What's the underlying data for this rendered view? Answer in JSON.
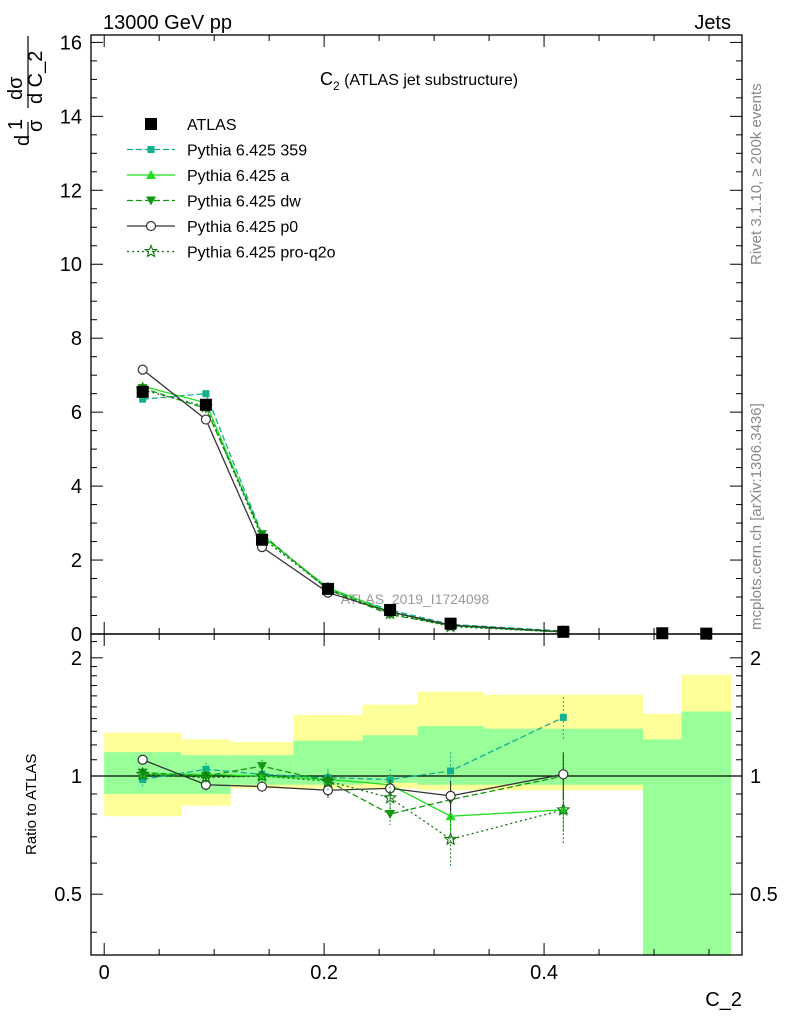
{
  "header": {
    "left": "13000 GeV pp",
    "right": "Jets"
  },
  "side": {
    "rivet": "Rivet 3.1.10, ≥ 200k events",
    "mcplots": "mcplots.cern.ch [arXiv:1306.3436]"
  },
  "chart_data": {
    "type": "line",
    "title": "C₂ (ATLAS jet substructure)",
    "title_main": "C",
    "title_sub": "2",
    "title_rest": " (ATLAS jet substructure)",
    "analysis_label": "ATLAS_2019_I1724098",
    "xlabel": "C_2",
    "ylabel_top": {
      "frac1_num": "1",
      "frac1_den": "σ",
      "frac2_num": "dσ",
      "frac2_den": "d C_2",
      "prefix": "d"
    },
    "ylabel_bottom": "Ratio to ATLAS",
    "xlim": [
      -0.012,
      0.58
    ],
    "ylim_top": [
      0,
      16.2
    ],
    "ylim_ratio": [
      0.35,
      2.3
    ],
    "xticks": [
      "0",
      "0.2",
      "0.4"
    ],
    "yticks_top": [
      "0",
      "2",
      "4",
      "6",
      "8",
      "10",
      "12",
      "14",
      "16"
    ],
    "yticks_ratio": [
      "0.5",
      "1",
      "2"
    ],
    "grid": false,
    "legend_position": "top-left",
    "bins": [
      [
        0,
        0.07
      ],
      [
        0.07,
        0.115
      ],
      [
        0.115,
        0.172
      ],
      [
        0.172,
        0.235
      ],
      [
        0.235,
        0.285
      ],
      [
        0.285,
        0.345
      ],
      [
        0.345,
        0.49
      ],
      [
        0.49,
        0.525
      ],
      [
        0.525,
        0.57
      ]
    ],
    "data_x": [
      0.035,
      0.0925,
      0.1435,
      0.2035,
      0.26,
      0.315,
      0.4175,
      0.5075,
      0.5475
    ],
    "data_y": [
      6.55,
      6.2,
      2.55,
      1.22,
      0.65,
      0.28,
      0.06,
      0.02,
      0.01
    ],
    "band_yellow": [
      [
        0.79,
        1.29
      ],
      [
        0.84,
        1.24
      ],
      [
        0.93,
        1.22
      ],
      [
        0.93,
        1.43
      ],
      [
        0.93,
        1.52
      ],
      [
        0.92,
        1.64
      ],
      [
        0.92,
        1.61
      ],
      [
        0.35,
        1.44
      ],
      [
        0.35,
        1.81
      ]
    ],
    "band_green": [
      [
        0.9,
        1.15
      ],
      [
        0.9,
        1.13
      ],
      [
        0.95,
        1.13
      ],
      [
        0.95,
        1.23
      ],
      [
        0.96,
        1.27
      ],
      [
        0.95,
        1.34
      ],
      [
        0.95,
        1.32
      ],
      [
        0.35,
        1.24
      ],
      [
        0.35,
        1.46
      ]
    ],
    "series": [
      {
        "name": "ATLAS",
        "color": "#000000",
        "marker": "square-filled",
        "dash": "none",
        "x": [
          0.035,
          0.0925,
          0.1435,
          0.2035,
          0.26,
          0.315,
          0.4175,
          0.5075,
          0.5475
        ],
        "y": [
          6.55,
          6.2,
          2.55,
          1.22,
          0.65,
          0.28,
          0.06,
          0.02,
          0.01
        ],
        "ratio": []
      },
      {
        "name": "Pythia 6.425 359",
        "color": "#10b090",
        "marker": "square-small",
        "dash": "6,3",
        "x": [
          0.035,
          0.0925,
          0.1435,
          0.2035,
          0.26,
          0.315,
          0.4175
        ],
        "y": [
          6.35,
          6.5,
          2.7,
          1.2,
          0.65,
          0.26,
          0.08
        ],
        "ratio": [
          0.98,
          1.04,
          1.01,
          0.99,
          0.98,
          1.03,
          1.41
        ],
        "ratio_err": [
          0.04,
          0.04,
          0.04,
          0.05,
          0.06,
          0.12,
          0.18
        ]
      },
      {
        "name": "Pythia 6.425 a",
        "color": "#22dd22",
        "marker": "triangle-up",
        "dash": "none",
        "x": [
          0.035,
          0.0925,
          0.1435,
          0.2035,
          0.26,
          0.315,
          0.4175
        ],
        "y": [
          6.7,
          6.25,
          2.65,
          1.25,
          0.6,
          0.22,
          0.05
        ],
        "ratio": [
          1.01,
          1.01,
          1.0,
          0.98,
          0.95,
          0.79,
          0.82
        ],
        "ratio_err": [
          0.03,
          0.03,
          0.04,
          0.05,
          0.06,
          0.07,
          0.1
        ]
      },
      {
        "name": "Pythia 6.425 dw",
        "color": "#119911",
        "marker": "triangle-down",
        "dash": "6,3",
        "x": [
          0.035,
          0.0925,
          0.1435,
          0.2035,
          0.26,
          0.315,
          0.4175
        ],
        "y": [
          6.65,
          6.1,
          2.7,
          1.2,
          0.52,
          0.24,
          0.06
        ],
        "ratio": [
          1.02,
          1.0,
          1.06,
          0.97,
          0.8,
          0.87,
          1.0
        ],
        "ratio_err": [
          0.03,
          0.03,
          0.04,
          0.05,
          0.05,
          0.08,
          0.13
        ]
      },
      {
        "name": "Pythia 6.425 p0",
        "color": "#333333",
        "marker": "circle-open",
        "dash": "none",
        "x": [
          0.035,
          0.0925,
          0.1435,
          0.2035,
          0.26,
          0.315,
          0.4175
        ],
        "y": [
          7.15,
          5.8,
          2.35,
          1.12,
          0.6,
          0.24,
          0.06
        ],
        "ratio": [
          1.1,
          0.95,
          0.94,
          0.92,
          0.93,
          0.89,
          1.01
        ],
        "ratio_err": [
          0.03,
          0.03,
          0.03,
          0.04,
          0.05,
          0.08,
          0.14
        ]
      },
      {
        "name": "Pythia 6.425 pro-q2o",
        "color": "#117711",
        "marker": "star-open",
        "dash": "2,3",
        "x": [
          0.035,
          0.0925,
          0.1435,
          0.2035,
          0.26,
          0.315,
          0.4175
        ],
        "y": [
          6.6,
          6.15,
          2.6,
          1.22,
          0.56,
          0.2,
          0.05
        ],
        "ratio": [
          1.01,
          0.99,
          1.0,
          0.97,
          0.88,
          0.69,
          0.82
        ],
        "ratio_err": [
          0.03,
          0.03,
          0.04,
          0.05,
          0.06,
          0.1,
          0.15
        ]
      }
    ]
  }
}
